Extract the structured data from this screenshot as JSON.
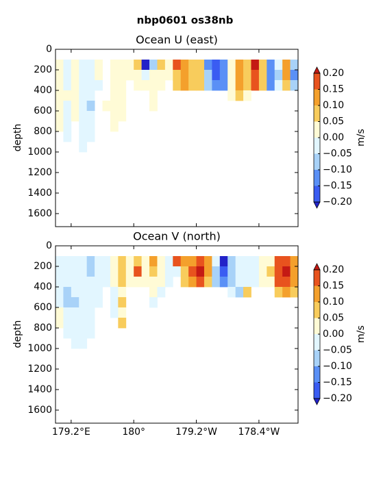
{
  "title": "nbp0601 os38nb",
  "chart_data": [
    {
      "type": "contourf",
      "title": "Ocean U (east)",
      "ylabel": "depth",
      "xlim": [
        179.0,
        182.1
      ],
      "ylim": [
        0,
        1727
      ],
      "y_inverted": true,
      "xticks": [
        179.2,
        180,
        180.8,
        181.6
      ],
      "yticks": [
        0,
        200,
        400,
        600,
        800,
        1000,
        1200,
        1400,
        1600
      ],
      "xbins": [
        179.0,
        179.1,
        179.2,
        179.3,
        179.4,
        179.5,
        179.6,
        179.7,
        179.8,
        179.9,
        180.0,
        180.1,
        180.2,
        180.3,
        180.4,
        180.5,
        180.6,
        180.7,
        180.8,
        180.9,
        181.0,
        181.1,
        181.2,
        181.3,
        181.4,
        181.5,
        181.6,
        181.7,
        181.8,
        181.9,
        182.0,
        182.1
      ],
      "ybins": [
        100,
        200,
        300,
        400,
        500,
        600,
        700,
        800,
        900,
        1000
      ],
      "z": [
        [
          0.02,
          -0.03,
          0.03,
          -0.03,
          -0.04,
          0.02,
          null,
          0.03,
          0.02,
          0.03,
          0.06,
          -0.22,
          -0.06,
          0.07,
          0.02,
          0.17,
          0.12,
          0.08,
          0.1,
          -0.12,
          -0.17,
          -0.13,
          0.03,
          0.12,
          0.08,
          0.22,
          0.06,
          -0.1,
          -0.04,
          0.12,
          -0.08
        ],
        [
          0.03,
          -0.02,
          0.02,
          -0.03,
          -0.04,
          0.01,
          null,
          0.02,
          0.01,
          0.03,
          0.04,
          -0.02,
          0.02,
          0.03,
          0.01,
          0.07,
          0.13,
          0.09,
          0.08,
          -0.08,
          -0.16,
          -0.12,
          0.04,
          0.13,
          0.07,
          0.18,
          0.06,
          -0.12,
          -0.05,
          0.11,
          -0.1
        ],
        [
          0.04,
          -0.01,
          0.03,
          -0.02,
          -0.03,
          -0.02,
          null,
          0.02,
          0.02,
          null,
          0.02,
          0.01,
          0.02,
          0.02,
          null,
          0.06,
          0.11,
          0.07,
          0.06,
          -0.06,
          -0.12,
          -0.14,
          0.02,
          0.11,
          0.06,
          0.16,
          0.07,
          -0.11,
          -0.03,
          0.09,
          -0.08
        ],
        [
          0.03,
          0.02,
          0.04,
          -0.03,
          -0.02,
          null,
          null,
          0.01,
          0.02,
          null,
          null,
          null,
          0.01,
          null,
          null,
          null,
          null,
          null,
          null,
          null,
          null,
          null,
          0.02,
          0.09,
          0.05,
          null,
          null,
          null,
          null,
          null,
          null
        ],
        [
          0.02,
          -0.01,
          0.03,
          -0.04,
          -0.05,
          null,
          0.05,
          0.02,
          0.01,
          null,
          null,
          null,
          0.01,
          null,
          null,
          null,
          null,
          null,
          null,
          null,
          null,
          null,
          null,
          null,
          null,
          null,
          null,
          null,
          null,
          null,
          null
        ],
        [
          0.03,
          -0.02,
          0.02,
          -0.03,
          -0.03,
          null,
          null,
          0.02,
          0.02,
          null,
          null,
          null,
          null,
          null,
          null,
          null,
          null,
          null,
          null,
          null,
          null,
          null,
          null,
          null,
          null,
          null,
          null,
          null,
          null,
          null,
          null
        ],
        [
          0.01,
          -0.02,
          null,
          -0.02,
          -0.03,
          null,
          null,
          0.02,
          null,
          null,
          null,
          null,
          null,
          null,
          null,
          null,
          null,
          null,
          null,
          null,
          null,
          null,
          null,
          null,
          null,
          null,
          null,
          null,
          null,
          null,
          null
        ],
        [
          null,
          -0.01,
          null,
          -0.02,
          -0.02,
          null,
          null,
          null,
          null,
          null,
          null,
          null,
          null,
          null,
          null,
          null,
          null,
          null,
          null,
          null,
          null,
          null,
          null,
          null,
          null,
          null,
          null,
          null,
          null,
          null,
          null
        ],
        [
          null,
          null,
          null,
          -0.02,
          null,
          null,
          null,
          null,
          null,
          null,
          null,
          null,
          null,
          null,
          null,
          null,
          null,
          null,
          null,
          null,
          null,
          null,
          null,
          null,
          null,
          null,
          null,
          null,
          null,
          null,
          null
        ]
      ],
      "colorbar": {
        "label": "m/s",
        "ticks": [
          {
            "value": -0.2,
            "label": "−0.20"
          },
          {
            "value": -0.15,
            "label": "−0.15"
          },
          {
            "value": -0.1,
            "label": "−0.10"
          },
          {
            "value": -0.05,
            "label": "−0.05"
          },
          {
            "value": 0,
            "label": "0.00"
          },
          {
            "value": 0.05,
            "label": "0.05"
          },
          {
            "value": 0.1,
            "label": "0.10"
          },
          {
            "value": 0.15,
            "label": "0.15"
          },
          {
            "value": 0.2,
            "label": "0.20"
          }
        ],
        "colors": [
          "#3a5cf2",
          "#5a90f6",
          "#a8d2f8",
          "#e2f6ff",
          "#fffbd6",
          "#f8cc5c",
          "#f4a02c",
          "#e8531e"
        ],
        "under_color": "#2222c8",
        "over_color": "#c41a14"
      }
    },
    {
      "type": "contourf",
      "title": "Ocean V (north)",
      "ylabel": "depth",
      "xlim": [
        179.0,
        182.1
      ],
      "ylim": [
        0,
        1727
      ],
      "y_inverted": true,
      "xticks": [
        {
          "value": 179.2,
          "label": "179.2°E"
        },
        {
          "value": 180,
          "label": "180°"
        },
        {
          "value": 180.8,
          "label": "179.2°W"
        },
        {
          "value": 181.6,
          "label": "178.4°W"
        }
      ],
      "yticks": [
        0,
        200,
        400,
        600,
        800,
        1000,
        1200,
        1400,
        1600
      ],
      "xbins": [
        179.0,
        179.1,
        179.2,
        179.3,
        179.4,
        179.5,
        179.6,
        179.7,
        179.8,
        179.9,
        180.0,
        180.1,
        180.2,
        180.3,
        180.4,
        180.5,
        180.6,
        180.7,
        180.8,
        180.9,
        181.0,
        181.1,
        181.2,
        181.3,
        181.4,
        181.5,
        181.6,
        181.7,
        181.8,
        181.9,
        182.0,
        182.1
      ],
      "ybins": [
        100,
        200,
        300,
        400,
        500,
        600,
        700,
        800,
        900,
        1000
      ],
      "z": [
        [
          -0.02,
          -0.03,
          -0.04,
          -0.02,
          -0.06,
          -0.02,
          -0.03,
          0.02,
          0.06,
          0.03,
          0.07,
          0.04,
          0.12,
          0.03,
          -0.02,
          0.18,
          0.12,
          0.13,
          0.17,
          0.11,
          -0.04,
          -0.22,
          -0.07,
          -0.03,
          -0.02,
          -0.01,
          0.03,
          0.04,
          0.16,
          0.18,
          0.14
        ],
        [
          -0.03,
          -0.02,
          -0.03,
          -0.03,
          -0.05,
          -0.02,
          -0.02,
          0.03,
          0.07,
          0.04,
          0.17,
          0.02,
          0.06,
          0.02,
          -0.02,
          -0.03,
          0.08,
          0.16,
          0.21,
          0.12,
          -0.06,
          -0.19,
          -0.08,
          -0.04,
          -0.03,
          -0.02,
          0.02,
          0.06,
          0.18,
          0.21,
          0.13
        ],
        [
          -0.02,
          -0.04,
          -0.02,
          -0.03,
          -0.04,
          -0.03,
          -0.02,
          0.02,
          0.06,
          0.03,
          0.03,
          0.02,
          0.04,
          0.02,
          -0.01,
          null,
          0.06,
          0.14,
          0.17,
          0.1,
          -0.05,
          -0.14,
          -0.06,
          -0.03,
          -0.02,
          -0.03,
          0.03,
          0.05,
          0.17,
          0.19,
          0.12
        ],
        [
          -0.03,
          -0.05,
          -0.03,
          -0.02,
          -0.04,
          -0.02,
          null,
          -0.02,
          0.05,
          null,
          null,
          null,
          0.02,
          -0.02,
          null,
          null,
          null,
          null,
          null,
          null,
          null,
          null,
          -0.03,
          -0.05,
          0.07,
          null,
          null,
          null,
          0.08,
          0.12,
          0.06
        ],
        [
          -0.04,
          -0.06,
          -0.05,
          -0.03,
          -0.03,
          -0.04,
          null,
          -0.02,
          0.06,
          null,
          null,
          null,
          -0.02,
          null,
          null,
          null,
          null,
          null,
          null,
          null,
          null,
          null,
          null,
          null,
          null,
          null,
          null,
          null,
          null,
          null,
          null
        ],
        [
          0.03,
          -0.04,
          -0.02,
          -0.03,
          -0.03,
          null,
          null,
          -0.01,
          0.05,
          null,
          null,
          null,
          null,
          null,
          null,
          null,
          null,
          null,
          null,
          null,
          null,
          null,
          null,
          null,
          null,
          null,
          null,
          null,
          null,
          null,
          null
        ],
        [
          0.02,
          -0.03,
          -0.03,
          -0.03,
          -0.02,
          null,
          null,
          null,
          0.06,
          null,
          null,
          null,
          null,
          null,
          null,
          null,
          null,
          null,
          null,
          null,
          null,
          null,
          null,
          null,
          null,
          null,
          null,
          null,
          null,
          null,
          null
        ],
        [
          null,
          -0.02,
          -0.04,
          -0.03,
          -0.03,
          null,
          null,
          null,
          null,
          null,
          null,
          null,
          null,
          null,
          null,
          null,
          null,
          null,
          null,
          null,
          null,
          null,
          null,
          null,
          null,
          null,
          null,
          null,
          null,
          null,
          null
        ],
        [
          null,
          null,
          -0.02,
          -0.03,
          null,
          null,
          null,
          null,
          null,
          null,
          null,
          null,
          null,
          null,
          null,
          null,
          null,
          null,
          null,
          null,
          null,
          null,
          null,
          null,
          null,
          null,
          null,
          null,
          null,
          null,
          null
        ]
      ],
      "colorbar": {
        "label": "m/s",
        "ticks": [
          {
            "value": -0.2,
            "label": "−0.20"
          },
          {
            "value": -0.15,
            "label": "−0.15"
          },
          {
            "value": -0.1,
            "label": "−0.10"
          },
          {
            "value": -0.05,
            "label": "−0.05"
          },
          {
            "value": 0,
            "label": "0.00"
          },
          {
            "value": 0.05,
            "label": "0.05"
          },
          {
            "value": 0.1,
            "label": "0.10"
          },
          {
            "value": 0.15,
            "label": "0.15"
          },
          {
            "value": 0.2,
            "label": "0.20"
          }
        ],
        "colors": [
          "#3a5cf2",
          "#5a90f6",
          "#a8d2f8",
          "#e2f6ff",
          "#fffbd6",
          "#f8cc5c",
          "#f4a02c",
          "#e8531e"
        ],
        "under_color": "#2222c8",
        "over_color": "#c41a14"
      }
    }
  ]
}
